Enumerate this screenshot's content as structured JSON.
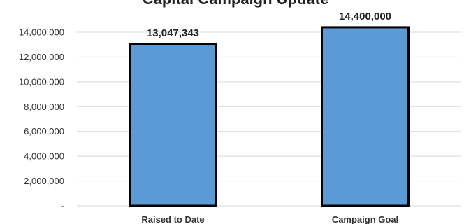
{
  "chart_data": {
    "type": "bar",
    "title": "Capital Campaign Update",
    "categories": [
      "Raised to Date",
      "Campaign Goal"
    ],
    "values": [
      13047343,
      14400000
    ],
    "data_labels": [
      "13,047,343",
      "14,400,000"
    ],
    "ylim": [
      0,
      14000000
    ],
    "yticks": [
      0,
      2000000,
      4000000,
      6000000,
      8000000,
      10000000,
      12000000,
      14000000
    ],
    "ytick_labels": [
      "-",
      "2,000,000",
      "4,000,000",
      "6,000,000",
      "8,000,000",
      "10,000,000",
      "12,000,000",
      "14,000,000"
    ],
    "grid": true,
    "legend": "none",
    "colors": {
      "bar_fill": "#5b9bd5",
      "bar_stroke": "#000000"
    }
  }
}
